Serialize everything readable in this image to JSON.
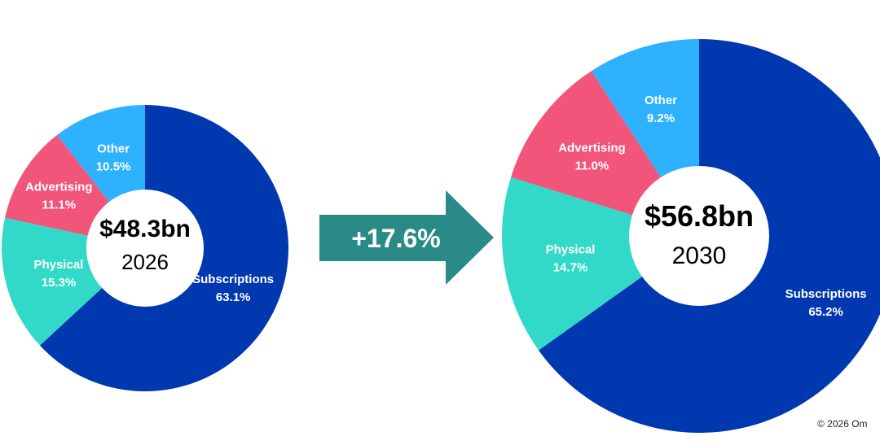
{
  "chart_data": [
    {
      "type": "pie",
      "variant": "donut",
      "center_total": "$48.3bn",
      "center_year": "2026",
      "colors": {
        "Subscriptions": "#0038b0",
        "Physical": "#33d9c8",
        "Advertising": "#f1567a",
        "Other": "#2eb1ff"
      },
      "slices": [
        {
          "label": "Subscriptions",
          "value": 63.1,
          "value_label": "63.1%"
        },
        {
          "label": "Physical",
          "value": 15.3,
          "value_label": "15.3%"
        },
        {
          "label": "Advertising",
          "value": 11.1,
          "value_label": "11.1%"
        },
        {
          "label": "Other",
          "value": 10.5,
          "value_label": "10.5%"
        }
      ]
    },
    {
      "type": "pie",
      "variant": "donut",
      "center_total": "$56.8bn",
      "center_year": "2030",
      "colors": {
        "Subscriptions": "#0038b0",
        "Physical": "#33d9c8",
        "Advertising": "#f1567a",
        "Other": "#2eb1ff"
      },
      "slices": [
        {
          "label": "Subscriptions",
          "value": 65.2,
          "value_label": "65.2%"
        },
        {
          "label": "Physical",
          "value": 14.7,
          "value_label": "14.7%"
        },
        {
          "label": "Advertising",
          "value": 11.0,
          "value_label": "11.0%"
        },
        {
          "label": "Other",
          "value": 9.2,
          "value_label": "9.2%"
        }
      ]
    }
  ],
  "growth": {
    "label": "+17.6%",
    "color": "#2a8a87"
  },
  "copyright": "© 2026 Om"
}
